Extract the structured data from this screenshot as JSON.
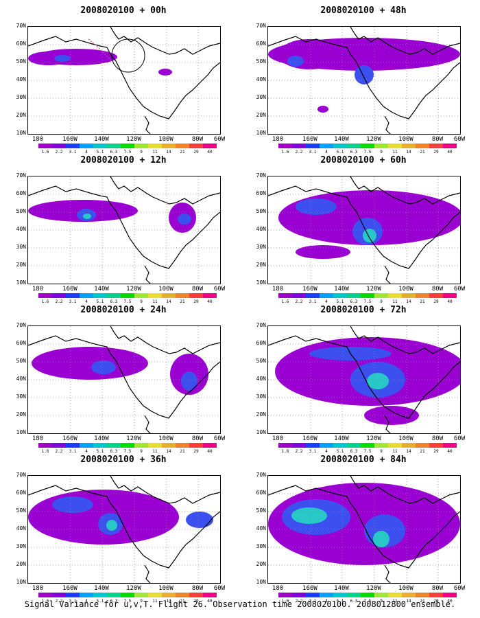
{
  "panels": [
    {
      "title": "2008020100 + 00h"
    },
    {
      "title": "2008020100 + 48h"
    },
    {
      "title": "2008020100 + 12h"
    },
    {
      "title": "2008020100 + 60h"
    },
    {
      "title": "2008020100 + 24h"
    },
    {
      "title": "2008020100 + 72h"
    },
    {
      "title": "2008020100 + 36h"
    },
    {
      "title": "2008020100 + 84h"
    }
  ],
  "y_labels": [
    "70N",
    "60N",
    "50N",
    "40N",
    "30N",
    "20N",
    "10N"
  ],
  "x_labels": [
    "180",
    "160W",
    "140W",
    "120W",
    "100W",
    "80W",
    "60W"
  ],
  "legend_values": [
    "1.6",
    "2.2",
    "3.1",
    "4",
    "5.1",
    "6.3",
    "7.5",
    "9",
    "11",
    "14",
    "21",
    "29",
    "40"
  ],
  "legend_colors": [
    "#a000c8",
    "#8200dc",
    "#1e3cff",
    "#00a0ff",
    "#00c8c8",
    "#00d28c",
    "#00dc00",
    "#a0e632",
    "#e6dc32",
    "#e6af2d",
    "#f08228",
    "#fa3c3c",
    "#f00082"
  ],
  "caption": "Signal Variance for u,v,T. Flight 26. Observation time 2008020100. 2008012800 ensemble."
}
